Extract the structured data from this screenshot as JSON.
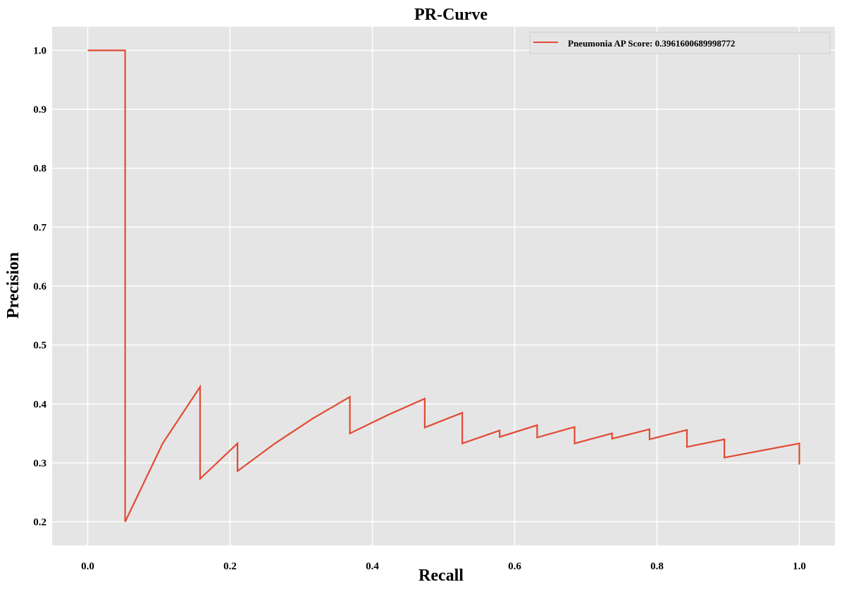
{
  "chart_data": {
    "type": "line",
    "title": "PR-Curve",
    "xlabel": "Recall",
    "ylabel": "Precision",
    "xlim": [
      -0.05,
      1.05
    ],
    "ylim": [
      0.16,
      1.04
    ],
    "xticks": [
      0.0,
      0.2,
      0.4,
      0.6,
      0.8,
      1.0
    ],
    "xtick_labels": [
      "0.0",
      "0.2",
      "0.4",
      "0.6",
      "0.8",
      "1.0"
    ],
    "yticks": [
      0.2,
      0.3,
      0.4,
      0.5,
      0.6,
      0.7,
      0.8,
      0.9,
      1.0
    ],
    "ytick_labels": [
      "0.2",
      "0.3",
      "0.4",
      "0.5",
      "0.6",
      "0.7",
      "0.8",
      "0.9",
      "1.0"
    ],
    "grid": true,
    "background": "#e5e5e5",
    "grid_color": "#ffffff",
    "legend_position": "top-right",
    "series": [
      {
        "name": "Pneumonia AP Score: 0.3961600689998772",
        "color": "#e24a33",
        "x": [
          0.0,
          0.0526,
          0.0526,
          0.1053,
          0.1579,
          0.1579,
          0.2105,
          0.2105,
          0.2632,
          0.3158,
          0.3684,
          0.3684,
          0.4211,
          0.4737,
          0.4737,
          0.5263,
          0.5263,
          0.5789,
          0.5789,
          0.6316,
          0.6316,
          0.6842,
          0.6842,
          0.7368,
          0.7368,
          0.7895,
          0.7895,
          0.8421,
          0.8421,
          0.8947,
          0.8947,
          1.0,
          1.0
        ],
        "y": [
          1.0,
          1.0,
          0.2,
          0.333,
          0.429,
          0.273,
          0.333,
          0.286,
          0.333,
          0.375,
          0.412,
          0.35,
          0.381,
          0.409,
          0.36,
          0.385,
          0.333,
          0.355,
          0.344,
          0.364,
          0.343,
          0.361,
          0.333,
          0.35,
          0.341,
          0.357,
          0.34,
          0.356,
          0.327,
          0.34,
          0.309,
          0.333,
          0.297
        ]
      }
    ]
  }
}
